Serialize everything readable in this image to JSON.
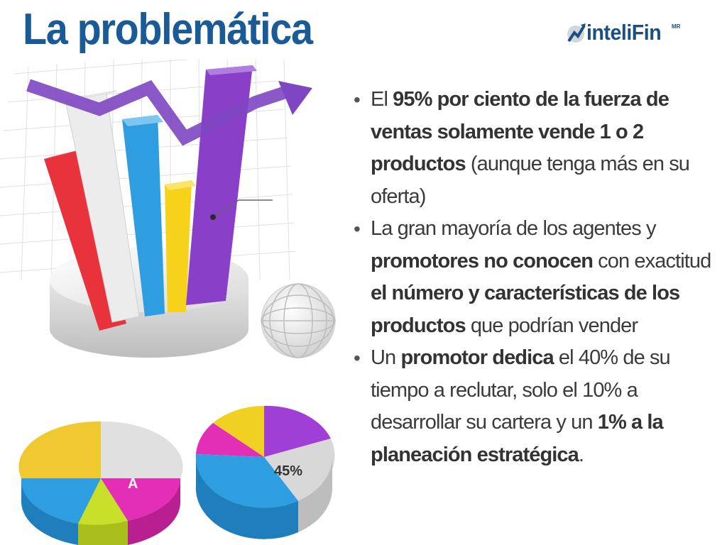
{
  "slide": {
    "title": "La problemática",
    "logo": {
      "text": "inteliFin",
      "mark": "MR",
      "icon": "chart-arrow-icon"
    },
    "bullets": [
      [
        {
          "t": "El ",
          "b": false
        },
        {
          "t": "95% por ciento de la fuerza de ventas solamente vende 1 o 2 productos",
          "b": true
        },
        {
          "t": " (aunque tenga más en su oferta)",
          "b": false
        }
      ],
      [
        {
          "t": "La gran mayoría de los agentes y ",
          "b": false
        },
        {
          "t": "promotores no conocen",
          "b": true
        },
        {
          "t": " con exactitud ",
          "b": false
        },
        {
          "t": "el número y características de los productos",
          "b": true
        },
        {
          "t": " que podrían vender",
          "b": false
        }
      ],
      [
        {
          "t": "Un ",
          "b": false
        },
        {
          "t": "promotor dedica",
          "b": true
        },
        {
          "t": " el 40% de su tiempo a reclutar, solo el 10% a desarrollar su cartera y un ",
          "b": false
        },
        {
          "t": "1% a la planeación estratégica",
          "b": true
        },
        {
          "t": ".",
          "b": false
        }
      ]
    ]
  },
  "illustration": {
    "pie_left_label": "A",
    "pie_right_label": "45%",
    "colors": {
      "red": "#e8323c",
      "white": "#ececec",
      "blue": "#2f9ee0",
      "yellow": "#f6d21b",
      "purple": "#8a3fc9",
      "magenta": "#e22fb5",
      "lime": "#c8e02a",
      "title_blue": "#1a5a96"
    }
  }
}
